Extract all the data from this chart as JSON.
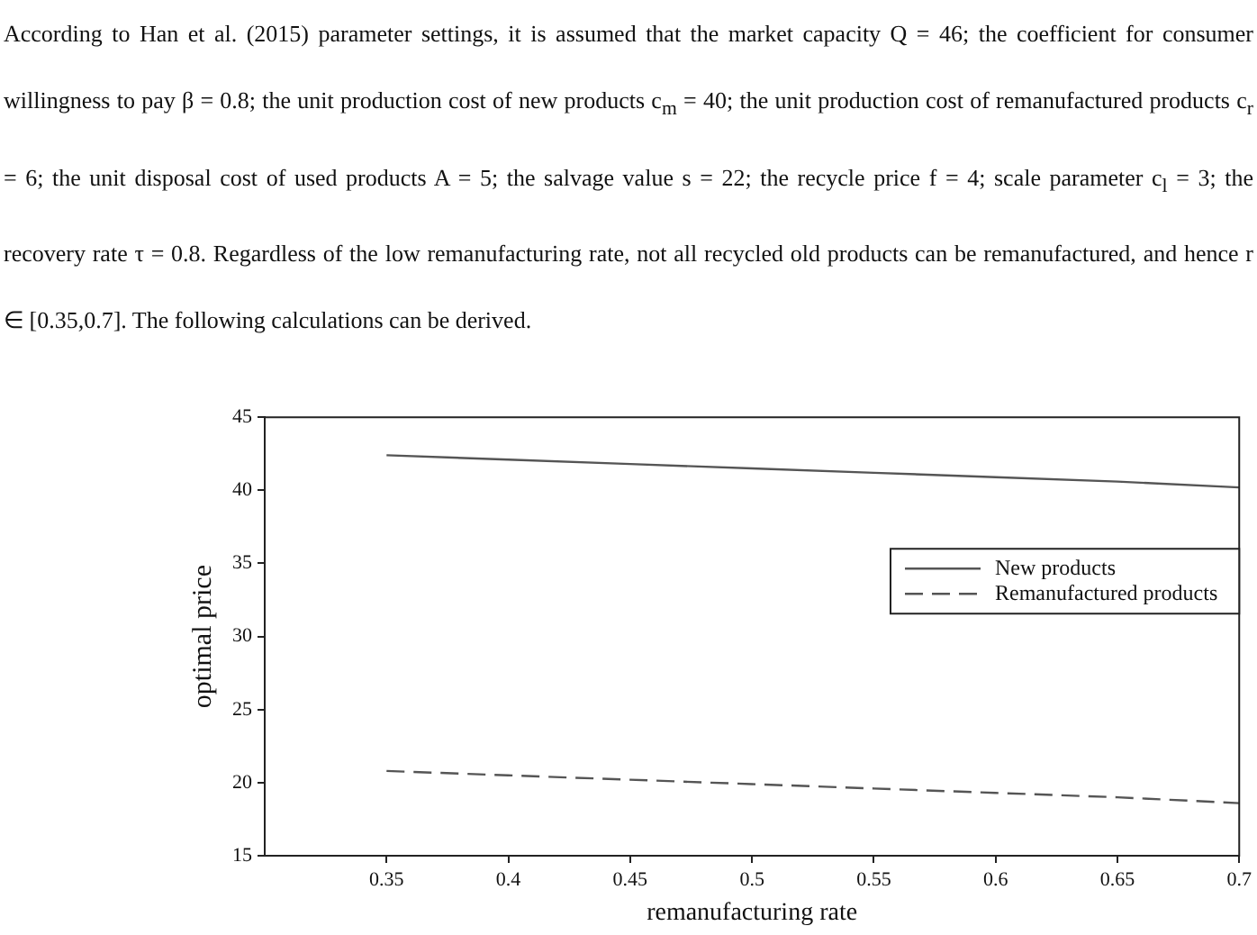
{
  "chart_data": {
    "type": "line",
    "annotations": [
      "According to Han et al. (2015) parameter settings, it is assumed that the market capacity Q = 46; the coefficient for consumer willingness to pay β = 0.8; the unit production cost of new products c$_{m}$ = 40; the unit production cost of remanufactured products c$_{r}$ = 6; the unit disposal cost of used products A = 5; the salvage value s = 22; the recycle price f = 4; scale parameter c$_{l}$ = 3; the recovery rate τ = 0.8. Regardless of the low remanufacturing rate, not all recycled old products can be remanufactured, and hence r ∈ [0.35,0.7]. The following calculations can be derived."
    ],
    "xlabel": "remanufacturing rate",
    "ylabel": "optimal price",
    "x": [
      0.35,
      0.4,
      0.45,
      0.5,
      0.55,
      0.6,
      0.65,
      0.7
    ],
    "series": [
      {
        "name": "New products",
        "color": "#555555",
        "line_style": "solid",
        "values": [
          42.4,
          42.1,
          41.8,
          41.5,
          41.2,
          40.9,
          40.6,
          40.2
        ]
      },
      {
        "name": "Remanufactured products",
        "color": "#555555",
        "line_style": "dashed",
        "values": [
          20.8,
          20.5,
          20.2,
          19.9,
          19.6,
          19.3,
          19.0,
          18.6
        ]
      }
    ],
    "xlim": [
      0.3,
      0.7
    ],
    "xticks": [
      0.35,
      0.4,
      0.45,
      0.5,
      0.55,
      0.6,
      0.65,
      0.7
    ],
    "ylim": [
      15,
      45
    ],
    "yticks": [
      15,
      20,
      25,
      30,
      35,
      40,
      45
    ],
    "grid": false,
    "legend": "right",
    "marker": "none"
  }
}
